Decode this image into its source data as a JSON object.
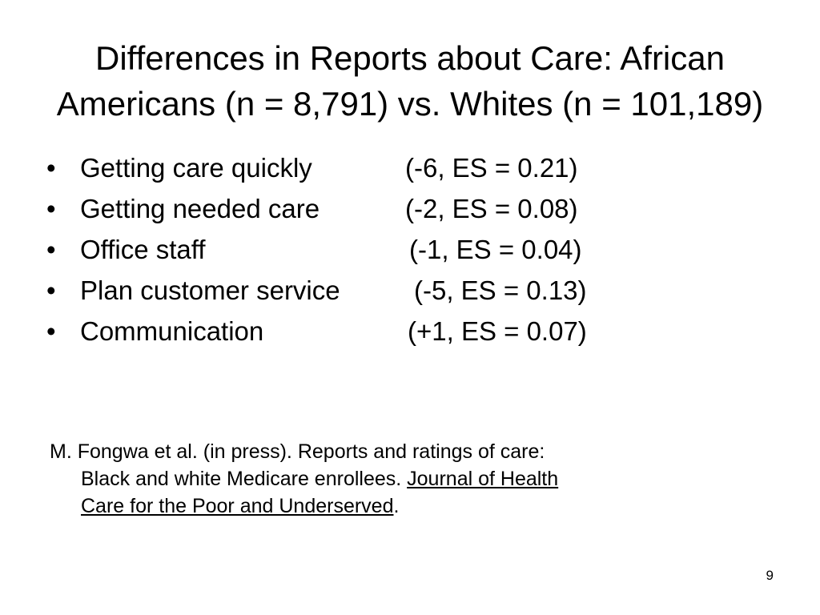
{
  "slide": {
    "title_line1": "Differences in Reports about Care: African",
    "title_line2": "Americans (n = 8,791) vs. Whites (n = 101,189)",
    "bullet_glyph": "•",
    "bullets": [
      {
        "label": "Getting care quickly",
        "stat": "(-6, ES = 0.21)"
      },
      {
        "label": "Getting needed care",
        "stat": "(-2, ES = 0.08)"
      },
      {
        "label": "Office staff",
        "stat": "(-1, ES = 0.04)"
      },
      {
        "label": "Plan customer service",
        "stat": "(-5, ES = 0.13)"
      },
      {
        "label": "Communication",
        "stat": "(+1, ES = 0.07)"
      }
    ],
    "citation": {
      "line1": "M. Fongwa et al. (in press).  Reports and ratings of care:",
      "line2_text": "Black and white Medicare enrollees.  ",
      "line2_journal": "Journal of Health",
      "line3_journal": "Care for the Poor and Underserved",
      "line3_end": "."
    },
    "page_number": "9"
  }
}
